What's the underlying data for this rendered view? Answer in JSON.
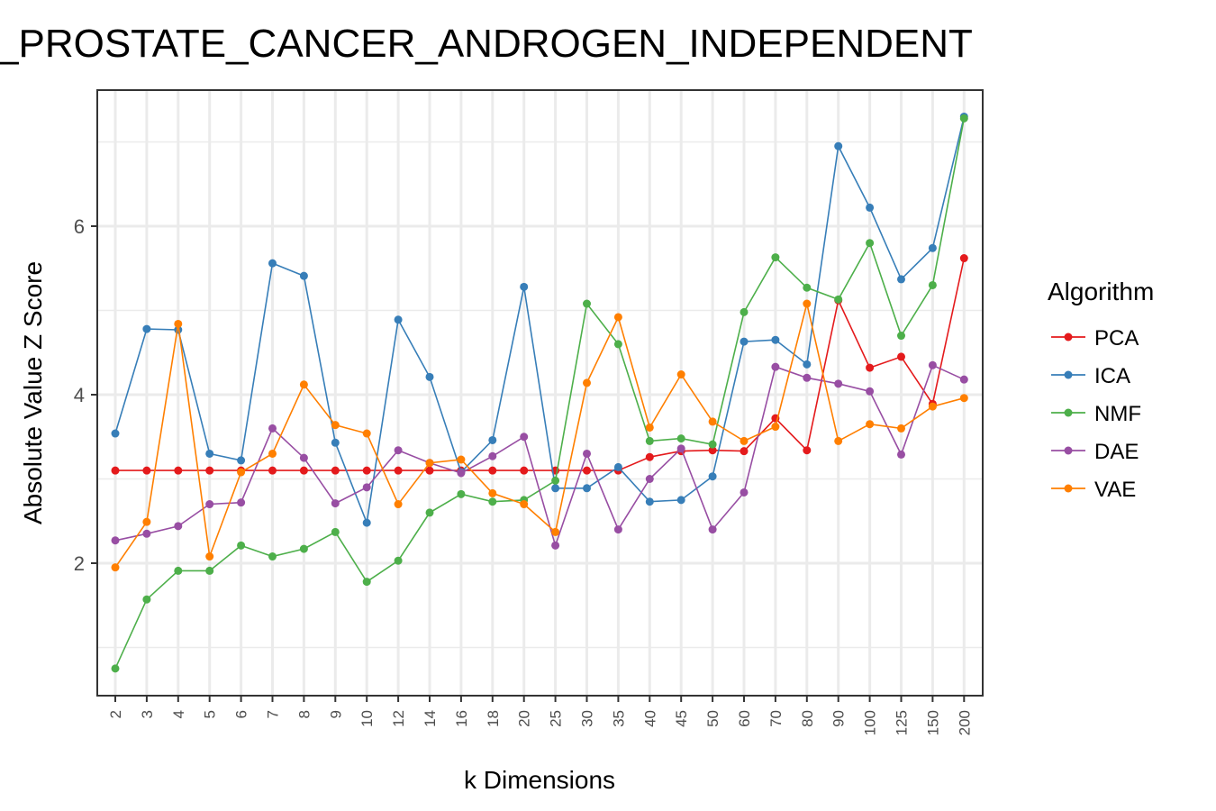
{
  "chart_data": {
    "type": "line",
    "title": "_PROSTATE_CANCER_ANDROGEN_INDEPENDENT",
    "xlabel": "k Dimensions",
    "ylabel": "Absolute Value Z Score",
    "categories": [
      "2",
      "3",
      "4",
      "5",
      "6",
      "7",
      "8",
      "9",
      "10",
      "12",
      "14",
      "16",
      "18",
      "20",
      "25",
      "30",
      "35",
      "40",
      "45",
      "50",
      "60",
      "70",
      "80",
      "90",
      "100",
      "125",
      "150",
      "200"
    ],
    "yticks": [
      "2",
      "4",
      "6"
    ],
    "ylim": [
      0.5,
      7.6
    ],
    "grid": true,
    "legend": {
      "title": "Algorithm",
      "position": "right"
    },
    "series": [
      {
        "name": "PCA",
        "color": "#e41a1c",
        "values": [
          3.1,
          3.1,
          3.1,
          3.1,
          3.1,
          3.1,
          3.1,
          3.1,
          3.1,
          3.1,
          3.1,
          3.1,
          3.1,
          3.1,
          3.1,
          3.1,
          3.1,
          3.26,
          3.33,
          3.34,
          3.33,
          3.72,
          3.34,
          5.12,
          4.32,
          4.45,
          3.89,
          5.62
        ]
      },
      {
        "name": "ICA",
        "color": "#377eb8",
        "values": [
          3.54,
          4.78,
          4.77,
          3.3,
          3.22,
          5.56,
          5.41,
          3.43,
          2.48,
          4.89,
          4.21,
          3.08,
          3.46,
          5.28,
          2.89,
          2.89,
          3.14,
          2.73,
          2.75,
          3.03,
          4.63,
          4.65,
          4.36,
          6.95,
          6.22,
          5.37,
          5.74,
          7.3
        ]
      },
      {
        "name": "NMF",
        "color": "#4daf4a",
        "values": [
          0.75,
          1.57,
          1.91,
          1.91,
          2.21,
          2.08,
          2.17,
          2.37,
          1.78,
          2.03,
          2.6,
          2.82,
          2.73,
          2.75,
          2.98,
          5.08,
          4.6,
          3.45,
          3.48,
          3.41,
          4.98,
          5.63,
          5.27,
          5.13,
          5.8,
          4.7,
          5.3,
          7.28
        ]
      },
      {
        "name": "DAE",
        "color": "#984ea3",
        "values": [
          2.27,
          2.35,
          2.44,
          2.7,
          2.72,
          3.6,
          3.25,
          2.71,
          2.9,
          3.34,
          3.19,
          3.07,
          3.27,
          3.5,
          2.21,
          3.3,
          2.4,
          3.0,
          3.36,
          2.4,
          2.84,
          4.33,
          4.2,
          4.13,
          4.04,
          3.29,
          4.35,
          4.18
        ]
      },
      {
        "name": "VAE",
        "color": "#ff7f00",
        "values": [
          1.95,
          2.49,
          4.84,
          2.08,
          3.08,
          3.3,
          4.12,
          3.64,
          3.54,
          2.7,
          3.19,
          3.23,
          2.83,
          2.7,
          2.37,
          4.14,
          4.92,
          3.61,
          4.24,
          3.68,
          3.45,
          3.62,
          5.08,
          3.45,
          3.65,
          3.6,
          3.86,
          3.96
        ]
      }
    ]
  }
}
